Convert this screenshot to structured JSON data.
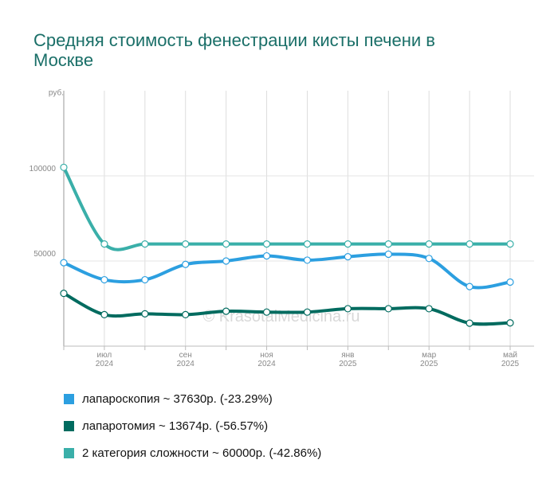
{
  "chart_data": {
    "type": "line",
    "title": "Средняя стоимость фенестрации кисты печени в Москве",
    "y_unit": "руб.",
    "watermark": "© KrasotaiMedicina.ru",
    "categories": [
      null,
      [
        "июл",
        "2024"
      ],
      null,
      [
        "сен",
        "2024"
      ],
      null,
      [
        "ноя",
        "2024"
      ],
      null,
      [
        "янв",
        "2025"
      ],
      null,
      [
        "мар",
        "2025"
      ],
      null,
      [
        "май",
        "2025"
      ]
    ],
    "ylim": [
      0,
      150000
    ],
    "yticks": [
      50000,
      100000
    ],
    "grid": true,
    "series": [
      {
        "name": "лапароскопия ~ 37630р. (-23.29%)",
        "color": "#2c9fe0",
        "values": [
          49000,
          39000,
          39000,
          48000,
          50000,
          53000,
          50500,
          52500,
          54000,
          51500,
          35000,
          37630
        ]
      },
      {
        "name": "лапаротомия ~ 13674р. (-56.57%)",
        "color": "#006b5f",
        "values": [
          31000,
          18500,
          19000,
          18500,
          20500,
          20000,
          20000,
          22000,
          22000,
          22000,
          13500,
          13674
        ]
      },
      {
        "name": "2 категория сложности ~ 60000р. (-42.86%)",
        "color": "#3aafa9",
        "values": [
          105000,
          60000,
          60000,
          60000,
          60000,
          60000,
          60000,
          60000,
          60000,
          60000,
          60000,
          60000
        ]
      }
    ]
  }
}
